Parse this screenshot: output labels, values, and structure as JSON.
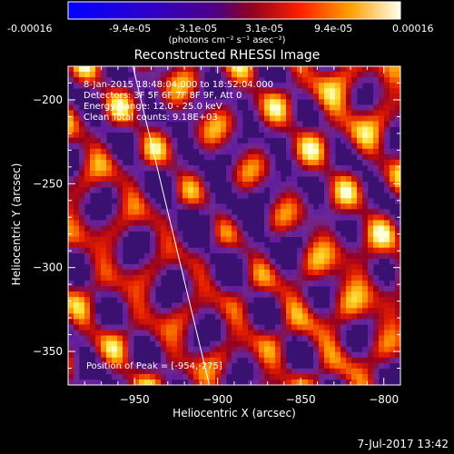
{
  "colorbar": {
    "tick_labels": [
      "-0.00016",
      "-9.4e-05",
      "-3.1e-05",
      "3.1e-05",
      "9.4e-05",
      "0.00016"
    ],
    "range": [
      -0.00016,
      0.00016
    ],
    "units_label": "(photons cm⁻² s⁻¹ asec⁻²)"
  },
  "chart_data": {
    "type": "heatmap",
    "title": "Reconstructed RHESSI Image",
    "xlabel": "Heliocentric X (arcsec)",
    "ylabel": "Heliocentric Y (arcsec)",
    "xlim": [
      -990,
      -790
    ],
    "ylim": [
      -370,
      -180
    ],
    "x_ticks": [
      -950,
      -900,
      -850,
      -800
    ],
    "y_ticks": [
      -200,
      -250,
      -300,
      -350
    ],
    "x_tick_labels": [
      "−950",
      "−900",
      "−850",
      "−800"
    ],
    "y_tick_labels": [
      "−200",
      "−250",
      "−300",
      "−350"
    ],
    "limb_line": [
      [
        -951,
        -180
      ],
      [
        -905,
        -370
      ]
    ],
    "peak": [
      -954,
      -275
    ],
    "annotations": [
      "8-Jan-2015 18:48:04.000 to 18:52:04.000",
      "Detectors: 3F 5F 6F 7F 8F 9F, Att 0",
      "Energy Range: 12.0 - 25.0 keV",
      "Clean    Total counts: 9.18E+03",
      "Position of Peak = [-954,-275]"
    ]
  },
  "footer": {
    "timestamp": "7-Jul-2017 13:42"
  }
}
